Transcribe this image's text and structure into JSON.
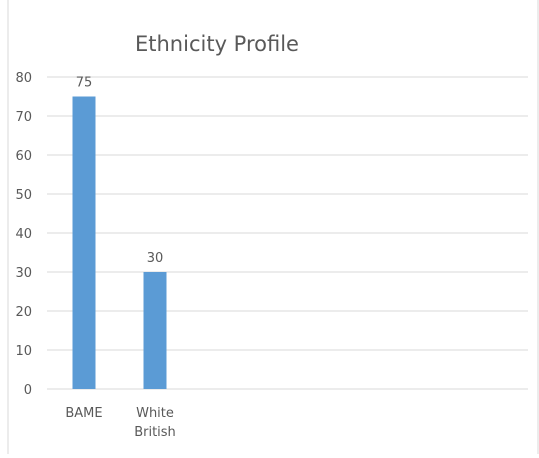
{
  "chart_data": {
    "type": "bar",
    "title": "Ethnicity Profile",
    "categories": [
      "BAME",
      "White British"
    ],
    "category_label_lines": [
      [
        "BAME"
      ],
      [
        "White",
        "British"
      ]
    ],
    "values": [
      75,
      30
    ],
    "data_labels": [
      "75",
      "30"
    ],
    "xlabel": "",
    "ylabel": "",
    "ylim": [
      0,
      80
    ],
    "yticks": [
      0,
      10,
      20,
      30,
      40,
      50,
      60,
      70,
      80
    ],
    "grid": true,
    "legend": "none"
  },
  "colors": {
    "bar": "#5b9bd5",
    "gridline": "#d9d9d9",
    "tick_text": "#595959",
    "title_text": "#595959",
    "border": "#d9d9d9"
  }
}
